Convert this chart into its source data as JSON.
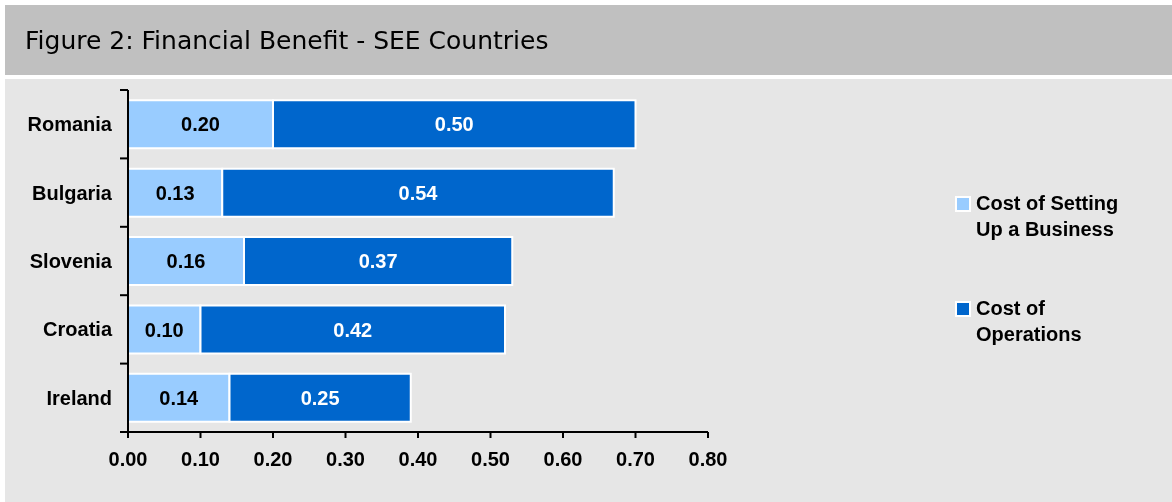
{
  "chart_data": {
    "type": "bar",
    "title": "Figure 2: Financial Benefit - SEE Countries",
    "categories": [
      "Romania",
      "Bulgaria",
      "Slovenia",
      "Croatia",
      "Ireland"
    ],
    "orientation": "horizontal",
    "stacked": true,
    "series": [
      {
        "name": "Cost of Setting Up a Business",
        "color": "#99ccff",
        "values": [
          0.2,
          0.13,
          0.16,
          0.1,
          0.14
        ],
        "value_labels": [
          "0.20",
          "0.13",
          "0.16",
          "0.10",
          "0.14"
        ]
      },
      {
        "name": "Cost of Operations",
        "color": "#0066cc",
        "values": [
          0.5,
          0.54,
          0.37,
          0.42,
          0.25
        ],
        "value_labels": [
          "0.50",
          "0.54",
          "0.37",
          "0.42",
          "0.25"
        ]
      }
    ],
    "xlim": [
      0,
      0.8
    ],
    "xticks": [
      {
        "value": 0,
        "label": "0.00"
      },
      {
        "value": 0.1,
        "label": "0.10"
      },
      {
        "value": 0.2,
        "label": "0.20"
      },
      {
        "value": 0.3,
        "label": "0.30"
      },
      {
        "value": 0.4,
        "label": "0.40"
      },
      {
        "value": 0.5,
        "label": "0.50"
      },
      {
        "value": 0.6,
        "label": "0.60"
      },
      {
        "value": 0.7,
        "label": "0.70"
      },
      {
        "value": 0.8,
        "label": "0.80"
      }
    ],
    "legend": "right"
  }
}
